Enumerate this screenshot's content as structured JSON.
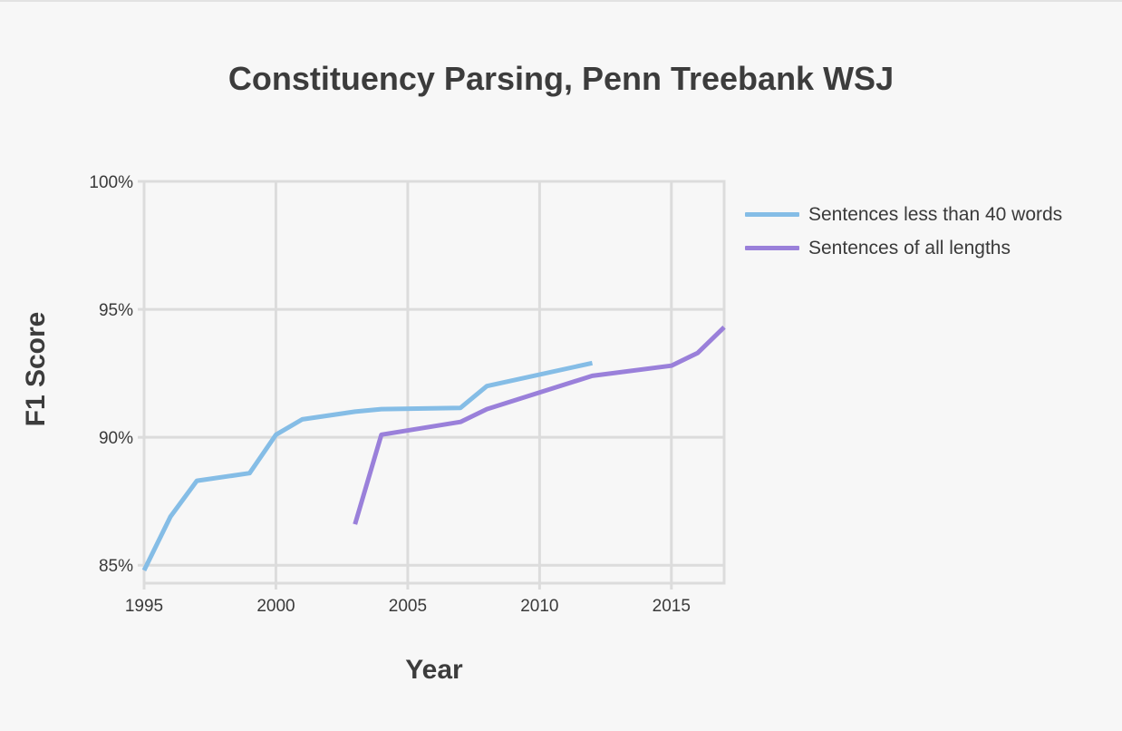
{
  "chart_data": {
    "type": "line",
    "title": "Constituency Parsing, Penn Treebank WSJ",
    "xlabel": "Year",
    "ylabel": "F1 Score",
    "xlim": [
      1995,
      2017
    ],
    "ylim": [
      84.3,
      100
    ],
    "x_ticks": [
      1995,
      2000,
      2005,
      2010,
      2015
    ],
    "y_ticks": [
      85,
      90,
      95,
      100
    ],
    "y_tick_labels": [
      "85%",
      "90%",
      "95%",
      "100%"
    ],
    "grid": true,
    "legend_position": "right",
    "series": [
      {
        "name": "Sentences less than 40 words",
        "color": "#85bde6",
        "points": [
          [
            1995,
            84.8
          ],
          [
            1996,
            86.9
          ],
          [
            1997,
            88.3
          ],
          [
            1999,
            88.6
          ],
          [
            2000,
            90.1
          ],
          [
            2001,
            90.7
          ],
          [
            2003,
            91.0
          ],
          [
            2004,
            91.1
          ],
          [
            2007,
            91.15
          ],
          [
            2008,
            92.0
          ],
          [
            2012,
            92.9
          ]
        ]
      },
      {
        "name": "Sentences of all lengths",
        "color": "#9a80da",
        "points": [
          [
            2003,
            86.6
          ],
          [
            2004,
            90.1
          ],
          [
            2007,
            90.6
          ],
          [
            2008,
            91.1
          ],
          [
            2012,
            92.4
          ],
          [
            2015,
            92.8
          ],
          [
            2016,
            93.3
          ],
          [
            2017,
            94.3
          ]
        ]
      }
    ]
  }
}
